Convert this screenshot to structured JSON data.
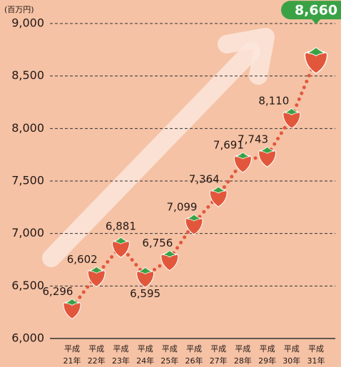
{
  "chart_data": {
    "type": "line",
    "unit_label": "(百万円)",
    "categories": [
      "平成21年",
      "平成22年",
      "平成23年",
      "平成24年",
      "平成25年",
      "平成26年",
      "平成27年",
      "平成28年",
      "平成29年",
      "平成30年",
      "平成31年"
    ],
    "values": [
      6296,
      6602,
      6881,
      6595,
      6756,
      7099,
      7364,
      7691,
      7743,
      8110,
      8660
    ],
    "value_labels": [
      "6,296",
      "6,602",
      "6,881",
      "6,595",
      "6,756",
      "7,099",
      "7,364",
      "7,691",
      "7,743",
      "8,110",
      "8,660"
    ],
    "color": "#e2573b",
    "ylim": [
      6000,
      9000
    ],
    "yticks": [
      {
        "value": 6000,
        "label": "6,000"
      },
      {
        "value": 6500,
        "label": "6,500"
      },
      {
        "value": 7000,
        "label": "7,000"
      },
      {
        "value": 7500,
        "label": "7,500"
      },
      {
        "value": 8000,
        "label": "8,000"
      },
      {
        "value": 8500,
        "label": "8,500"
      },
      {
        "value": 9000,
        "label": "9,000"
      }
    ],
    "grid": true
  }
}
